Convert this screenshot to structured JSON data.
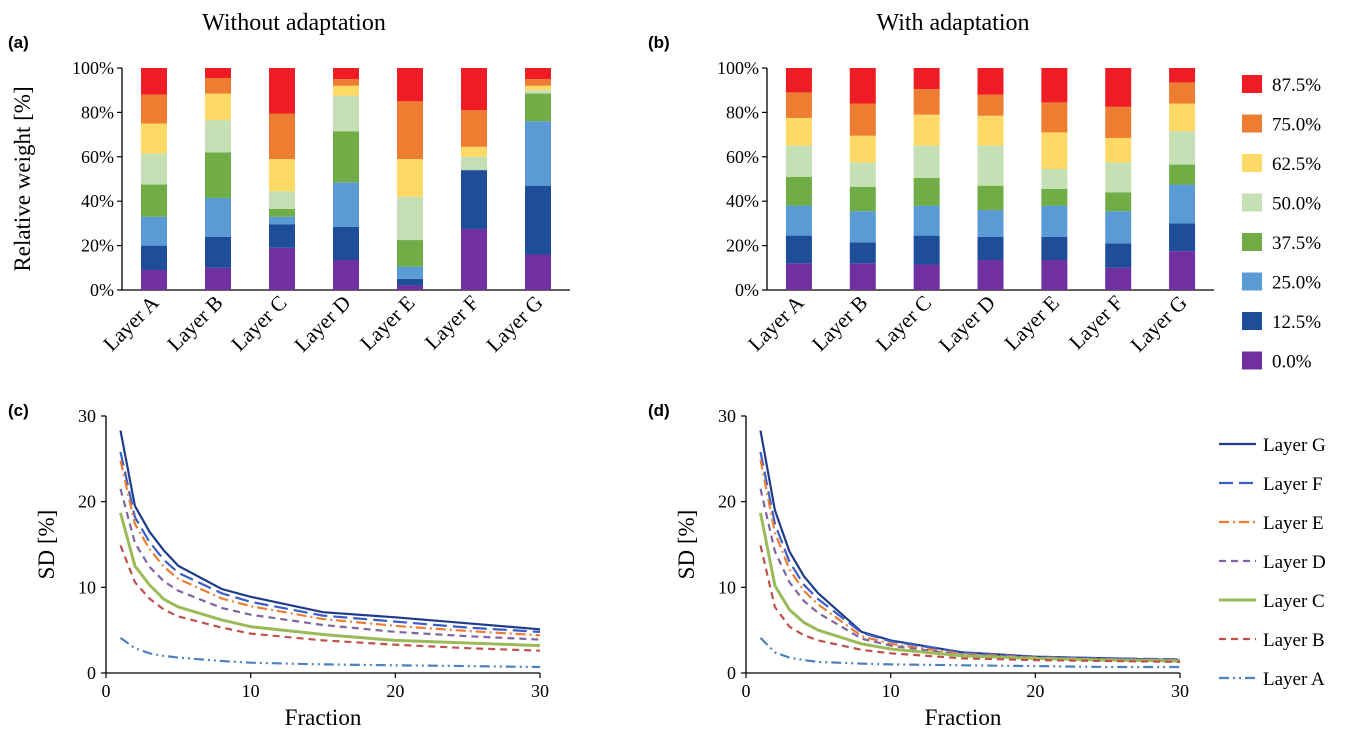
{
  "panels": {
    "a": {
      "label": "(a)",
      "title": "Without adaptation"
    },
    "b": {
      "label": "(b)",
      "title": "With adaptation"
    },
    "c": {
      "label": "(c)"
    },
    "d": {
      "label": "(d)"
    }
  },
  "chart_data": [
    {
      "id": "a",
      "type": "bar",
      "stacked": true,
      "title": "Without adaptation",
      "ylabel": "Relative weight [%]",
      "xlabel": "",
      "ylim": [
        0,
        100
      ],
      "yticks": [
        "0%",
        "20%",
        "40%",
        "60%",
        "80%",
        "100%"
      ],
      "categories": [
        "Layer A",
        "Layer B",
        "Layer C",
        "Layer D",
        "Layer E",
        "Layer F",
        "Layer G"
      ],
      "series": [
        {
          "name": "0.0%",
          "color": "#7030a0",
          "values": [
            9,
            10,
            19,
            13.5,
            2,
            27.5,
            16
          ]
        },
        {
          "name": "12.5%",
          "color": "#1f4e99",
          "values": [
            11,
            14,
            10.5,
            15,
            3,
            26.5,
            31
          ]
        },
        {
          "name": "25.0%",
          "color": "#5b9bd5",
          "values": [
            13,
            17.5,
            3.5,
            20,
            5.5,
            0,
            29
          ]
        },
        {
          "name": "37.5%",
          "color": "#70ad47",
          "values": [
            14.5,
            20.5,
            3.5,
            23,
            12,
            0,
            12.5
          ]
        },
        {
          "name": "50.0%",
          "color": "#c5e0b4",
          "values": [
            14,
            14.5,
            8,
            16,
            19.5,
            6,
            1.5
          ]
        },
        {
          "name": "62.5%",
          "color": "#ffd966",
          "values": [
            13.5,
            12,
            14.5,
            4.5,
            17,
            4.5,
            2
          ]
        },
        {
          "name": "75.0%",
          "color": "#ed7d31",
          "values": [
            13,
            7,
            20.5,
            3,
            26,
            16.5,
            3
          ]
        },
        {
          "name": "87.5%",
          "color": "#ee1c25",
          "values": [
            12,
            4.5,
            20.5,
            5,
            15,
            19,
            5
          ]
        }
      ]
    },
    {
      "id": "b",
      "type": "bar",
      "stacked": true,
      "title": "With adaptation",
      "ylabel": "",
      "xlabel": "",
      "ylim": [
        0,
        100
      ],
      "yticks": [
        "0%",
        "20%",
        "40%",
        "60%",
        "80%",
        "100%"
      ],
      "categories": [
        "Layer A",
        "Layer B",
        "Layer C",
        "Layer D",
        "Layer E",
        "Layer F",
        "Layer G"
      ],
      "legend_position": "right",
      "series": [
        {
          "name": "0.0%",
          "color": "#7030a0",
          "values": [
            12,
            12,
            11.5,
            13.5,
            13.5,
            10,
            17.5
          ]
        },
        {
          "name": "12.5%",
          "color": "#1f4e99",
          "values": [
            12.5,
            9.5,
            13,
            10.5,
            10.5,
            11,
            12.5
          ]
        },
        {
          "name": "25.0%",
          "color": "#5b9bd5",
          "values": [
            13.5,
            14,
            13.5,
            12,
            14,
            14.5,
            17.5
          ]
        },
        {
          "name": "37.5%",
          "color": "#70ad47",
          "values": [
            13,
            11,
            12.5,
            11,
            7.5,
            8.5,
            9
          ]
        },
        {
          "name": "50.0%",
          "color": "#c5e0b4",
          "values": [
            14,
            11,
            14.5,
            18,
            9,
            13.5,
            15
          ]
        },
        {
          "name": "62.5%",
          "color": "#ffd966",
          "values": [
            12.5,
            12,
            14,
            13.5,
            16.5,
            11,
            12.5
          ]
        },
        {
          "name": "75.0%",
          "color": "#ed7d31",
          "values": [
            11.5,
            14.5,
            11.5,
            9.5,
            13.5,
            14,
            9.5
          ]
        },
        {
          "name": "87.5%",
          "color": "#ee1c25",
          "values": [
            11,
            16,
            9.5,
            12,
            15.5,
            17.5,
            6.5
          ]
        }
      ]
    },
    {
      "id": "c",
      "type": "line",
      "ylabel": "SD [%]",
      "xlabel": "Fraction",
      "xlim": [
        0,
        30
      ],
      "ylim": [
        0,
        30
      ],
      "xticks": [
        0,
        10,
        20,
        30
      ],
      "yticks": [
        0,
        10,
        20,
        30
      ],
      "x": [
        1,
        2,
        3,
        4,
        5,
        8,
        10,
        15,
        20,
        25,
        30
      ],
      "series": [
        {
          "name": "Layer G",
          "color": "#1f3c88",
          "dash": "solid",
          "values": [
            28.3,
            19.5,
            16.5,
            14.3,
            12.5,
            9.8,
            8.9,
            7.1,
            6.5,
            5.8,
            5.1
          ]
        },
        {
          "name": "Layer F",
          "color": "#3b5dc9",
          "dash": "longdash",
          "values": [
            25.8,
            18.2,
            15.3,
            13.2,
            11.7,
            9.3,
            8.3,
            6.7,
            6.0,
            5.3,
            4.8
          ]
        },
        {
          "name": "Layer E",
          "color": "#ed7d31",
          "dash": "dashdot",
          "values": [
            24.8,
            17.4,
            14.5,
            12.4,
            11.0,
            8.7,
            7.8,
            6.3,
            5.5,
            4.9,
            4.4
          ]
        },
        {
          "name": "Layer D",
          "color": "#8064a2",
          "dash": "dash",
          "values": [
            21.5,
            15.2,
            12.4,
            10.7,
            9.6,
            7.6,
            6.8,
            5.6,
            4.8,
            4.3,
            3.9
          ]
        },
        {
          "name": "Layer C",
          "color": "#9bbb59",
          "dash": "solid",
          "values": [
            18.7,
            12.5,
            10.3,
            8.6,
            7.7,
            6.2,
            5.4,
            4.5,
            3.8,
            3.5,
            3.2
          ]
        },
        {
          "name": "Layer B",
          "color": "#c0504d",
          "dash": "dash",
          "values": [
            14.9,
            10.6,
            8.7,
            7.4,
            6.6,
            5.3,
            4.6,
            3.8,
            3.3,
            2.9,
            2.6
          ]
        },
        {
          "name": "Layer A",
          "color": "#4f81bd",
          "dash": "dashdotdot",
          "values": [
            4.1,
            2.9,
            2.3,
            2.0,
            1.8,
            1.4,
            1.2,
            1.0,
            0.9,
            0.8,
            0.7
          ]
        }
      ]
    },
    {
      "id": "d",
      "type": "line",
      "ylabel": "SD [%]",
      "xlabel": "Fraction",
      "xlim": [
        0,
        30
      ],
      "ylim": [
        0,
        30
      ],
      "xticks": [
        0,
        10,
        20,
        30
      ],
      "yticks": [
        0,
        10,
        20,
        30
      ],
      "legend_position": "right",
      "x": [
        1,
        2,
        3,
        4,
        5,
        8,
        10,
        15,
        20,
        25,
        30
      ],
      "series": [
        {
          "name": "Layer G",
          "color": "#1f3c88",
          "dash": "solid",
          "values": [
            28.3,
            19.0,
            14.2,
            11.3,
            9.3,
            4.8,
            3.8,
            2.4,
            1.9,
            1.7,
            1.5
          ]
        },
        {
          "name": "Layer F",
          "color": "#3b5dc9",
          "dash": "longdash",
          "values": [
            25.8,
            17.4,
            13.0,
            10.3,
            8.6,
            4.7,
            3.7,
            2.4,
            1.9,
            1.7,
            1.6
          ]
        },
        {
          "name": "Layer E",
          "color": "#ed7d31",
          "dash": "dashdot",
          "values": [
            24.9,
            16.4,
            12.1,
            9.6,
            8.0,
            4.3,
            3.4,
            2.2,
            1.8,
            1.6,
            1.5
          ]
        },
        {
          "name": "Layer D",
          "color": "#8064a2",
          "dash": "dash",
          "values": [
            21.5,
            14.2,
            10.6,
            8.4,
            7.0,
            4.0,
            3.2,
            2.1,
            1.7,
            1.6,
            1.5
          ]
        },
        {
          "name": "Layer C",
          "color": "#9bbb59",
          "dash": "solid",
          "values": [
            18.7,
            10.2,
            7.4,
            5.9,
            5.0,
            3.4,
            2.8,
            2.0,
            1.7,
            1.5,
            1.4
          ]
        },
        {
          "name": "Layer B",
          "color": "#c0504d",
          "dash": "dash",
          "values": [
            14.9,
            7.7,
            5.4,
            4.4,
            3.8,
            2.7,
            2.3,
            1.7,
            1.5,
            1.4,
            1.3
          ]
        },
        {
          "name": "Layer A",
          "color": "#4f81bd",
          "dash": "dashdotdot",
          "values": [
            4.1,
            2.4,
            1.8,
            1.5,
            1.3,
            1.1,
            1.0,
            0.9,
            0.8,
            0.7,
            0.7
          ]
        }
      ]
    }
  ]
}
